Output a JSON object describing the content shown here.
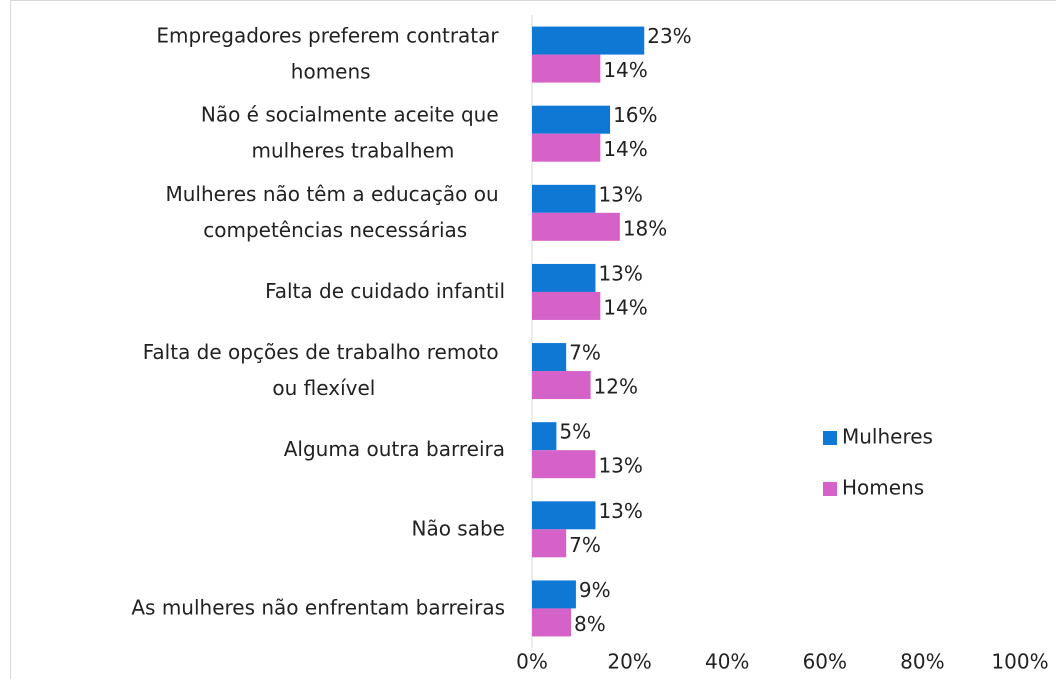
{
  "chart_data": {
    "type": "bar",
    "orientation": "horizontal",
    "categories": [
      "Empregadores preferem contratar homens",
      "Não é socialmente aceite que mulheres trabalhem",
      "Mulheres não têm a educação ou competências necessárias",
      "Falta de cuidado infantil",
      "Falta de opções de trabalho remoto ou flexível",
      "Alguma outra barreira",
      "Não sabe",
      "As mulheres não enfrentam barreiras"
    ],
    "series": [
      {
        "name": "Mulheres",
        "color": "#0f78d4",
        "values": [
          23,
          16,
          13,
          13,
          7,
          5,
          13,
          9
        ],
        "value_labels": [
          "23%",
          "16%",
          "13%",
          "13%",
          "7%",
          "5%",
          "13%",
          "9%"
        ]
      },
      {
        "name": "Homens",
        "color": "#d462c8",
        "values": [
          14,
          14,
          18,
          14,
          12,
          13,
          7,
          8
        ],
        "value_labels": [
          "14%",
          "14%",
          "18%",
          "14%",
          "12%",
          "13%",
          "7%",
          "8%"
        ]
      }
    ],
    "xlim": [
      0,
      100
    ],
    "xticks": [
      {
        "value": 0,
        "label": "0%"
      },
      {
        "value": 20,
        "label": "20%"
      },
      {
        "value": 40,
        "label": "40%"
      },
      {
        "value": 60,
        "label": "60%"
      },
      {
        "value": 80,
        "label": "80%"
      },
      {
        "value": 100,
        "label": "100%"
      }
    ],
    "legend": "right"
  }
}
